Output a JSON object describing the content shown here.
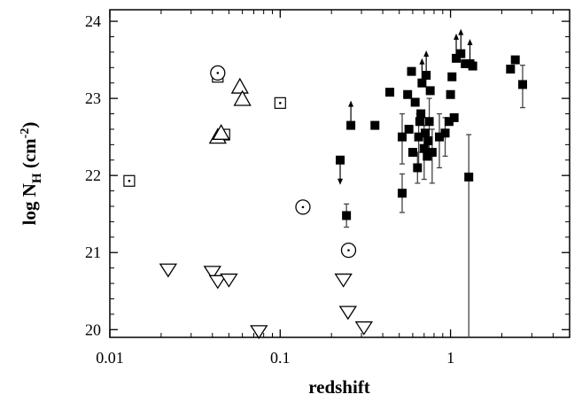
{
  "chart_data": {
    "type": "scatter",
    "xlabel": "redshift",
    "ylabel": "log N",
    "ylabel_sub": "H",
    "ylabel_unit_pre": " (cm",
    "ylabel_unit_sup": "-2",
    "ylabel_unit_post": ")",
    "x_scale": "log",
    "xlim": [
      0.01,
      5
    ],
    "ylim": [
      19.9,
      24.15
    ],
    "x_ticks": [
      {
        "value": 0.01,
        "label": "0.01"
      },
      {
        "value": 0.1,
        "label": "0.1"
      },
      {
        "value": 1,
        "label": "1"
      }
    ],
    "y_ticks": [
      {
        "value": 20,
        "label": "20"
      },
      {
        "value": 21,
        "label": "21"
      },
      {
        "value": 22,
        "label": "22"
      },
      {
        "value": 23,
        "label": "23"
      },
      {
        "value": 24,
        "label": "24"
      }
    ],
    "grid": false,
    "series": [
      {
        "marker": "filled-square",
        "points": [
          {
            "x": 0.225,
            "y": 22.2,
            "limit": "lower"
          },
          {
            "x": 0.245,
            "y": 21.48,
            "err": [
              0.15,
              0.15
            ]
          },
          {
            "x": 0.26,
            "y": 22.65,
            "limit": "upper"
          },
          {
            "x": 0.36,
            "y": 22.65
          },
          {
            "x": 0.44,
            "y": 23.08
          },
          {
            "x": 0.52,
            "y": 21.77,
            "err": [
              0.25,
              0.25
            ]
          },
          {
            "x": 0.52,
            "y": 22.5,
            "err": [
              0.35,
              0.3
            ]
          },
          {
            "x": 0.56,
            "y": 23.05
          },
          {
            "x": 0.57,
            "y": 22.6
          },
          {
            "x": 0.59,
            "y": 23.35
          },
          {
            "x": 0.6,
            "y": 22.3
          },
          {
            "x": 0.62,
            "y": 22.95
          },
          {
            "x": 0.64,
            "y": 22.1,
            "err": [
              0.2,
              0.2
            ]
          },
          {
            "x": 0.65,
            "y": 22.5,
            "err": [
              0.4,
              0.3
            ]
          },
          {
            "x": 0.66,
            "y": 22.7
          },
          {
            "x": 0.67,
            "y": 22.8
          },
          {
            "x": 0.68,
            "y": 23.2,
            "limit": "upper"
          },
          {
            "x": 0.7,
            "y": 22.35,
            "err": [
              0.4,
              0.3
            ]
          },
          {
            "x": 0.71,
            "y": 22.55
          },
          {
            "x": 0.72,
            "y": 23.3,
            "limit": "upper"
          },
          {
            "x": 0.73,
            "y": 22.25
          },
          {
            "x": 0.74,
            "y": 22.45
          },
          {
            "x": 0.75,
            "y": 22.7,
            "err": [
              0.5,
              0.3
            ]
          },
          {
            "x": 0.76,
            "y": 23.1
          },
          {
            "x": 0.78,
            "y": 22.3,
            "err": [
              0.4,
              0.3
            ]
          },
          {
            "x": 0.86,
            "y": 22.5,
            "err": [
              0.4,
              0.3
            ]
          },
          {
            "x": 0.93,
            "y": 22.55,
            "err": [
              0.3,
              0.2
            ]
          },
          {
            "x": 0.98,
            "y": 22.7
          },
          {
            "x": 1.0,
            "y": 23.05
          },
          {
            "x": 1.02,
            "y": 23.28
          },
          {
            "x": 1.05,
            "y": 22.75
          },
          {
            "x": 1.08,
            "y": 23.52,
            "limit": "upper"
          },
          {
            "x": 1.15,
            "y": 23.58,
            "limit": "upper"
          },
          {
            "x": 1.22,
            "y": 23.45
          },
          {
            "x": 1.28,
            "y": 21.98,
            "err": [
              3.0,
              0.55
            ]
          },
          {
            "x": 1.3,
            "y": 23.45,
            "limit": "upper"
          },
          {
            "x": 1.35,
            "y": 23.42
          },
          {
            "x": 2.25,
            "y": 23.38
          },
          {
            "x": 2.4,
            "y": 23.5
          },
          {
            "x": 2.65,
            "y": 23.18,
            "err": [
              0.3,
              0.25
            ]
          }
        ]
      },
      {
        "marker": "open-square-dot",
        "points": [
          {
            "x": 0.013,
            "y": 21.93
          },
          {
            "x": 0.043,
            "y": 23.28
          },
          {
            "x": 0.047,
            "y": 22.53
          },
          {
            "x": 0.1,
            "y": 22.94
          }
        ]
      },
      {
        "marker": "open-circle-dot",
        "points": [
          {
            "x": 0.043,
            "y": 23.33
          },
          {
            "x": 0.136,
            "y": 21.59
          },
          {
            "x": 0.252,
            "y": 21.03
          }
        ]
      },
      {
        "marker": "triangle-up",
        "points": [
          {
            "x": 0.043,
            "y": 22.5
          },
          {
            "x": 0.045,
            "y": 22.55
          },
          {
            "x": 0.058,
            "y": 23.15
          },
          {
            "x": 0.06,
            "y": 22.99
          }
        ]
      },
      {
        "marker": "triangle-down",
        "points": [
          {
            "x": 0.022,
            "y": 20.77
          },
          {
            "x": 0.04,
            "y": 20.74
          },
          {
            "x": 0.043,
            "y": 20.62
          },
          {
            "x": 0.05,
            "y": 20.64
          },
          {
            "x": 0.075,
            "y": 19.97
          },
          {
            "x": 0.235,
            "y": 20.64
          },
          {
            "x": 0.25,
            "y": 20.22
          },
          {
            "x": 0.31,
            "y": 20.02
          }
        ]
      }
    ]
  }
}
